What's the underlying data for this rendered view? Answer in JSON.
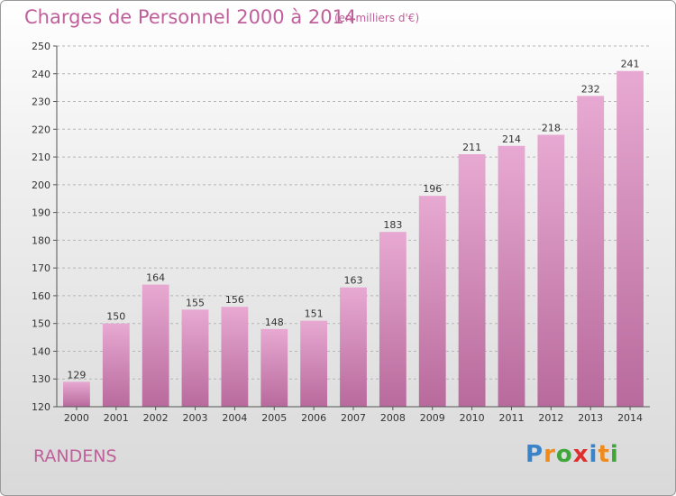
{
  "chart_data": {
    "type": "bar",
    "title": "Charges de Personnel 2000 à 2014",
    "subtitle": "(en milliers d'€)",
    "categories": [
      "2000",
      "2001",
      "2002",
      "2003",
      "2004",
      "2005",
      "2006",
      "2007",
      "2008",
      "2009",
      "2010",
      "2011",
      "2012",
      "2013",
      "2014"
    ],
    "values": [
      129,
      150,
      164,
      155,
      156,
      148,
      151,
      163,
      183,
      196,
      211,
      214,
      218,
      232,
      241
    ],
    "ylim": [
      120,
      250
    ],
    "yticks": [
      120,
      130,
      140,
      150,
      160,
      170,
      180,
      190,
      200,
      210,
      220,
      230,
      240,
      250
    ],
    "grid": true,
    "bar_color": "#d98bbd"
  },
  "footer": {
    "commune": "RANDENS",
    "logo_letters": [
      "P",
      "r",
      "o",
      "x",
      "i",
      "t",
      "i"
    ]
  }
}
